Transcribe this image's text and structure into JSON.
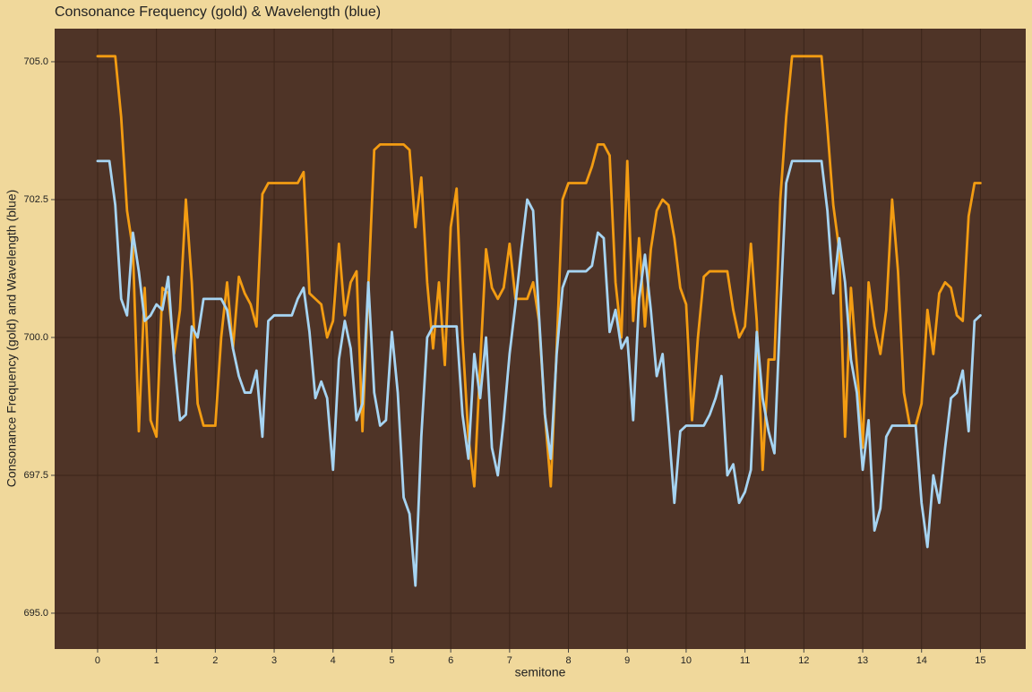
{
  "chart_data": {
    "type": "line",
    "title": "Consonance Frequency (gold) & Wavelength (blue)",
    "x_label": "semitone",
    "y_label": "Consonance Frequency (gold) and Wavelength (blue)",
    "x": [
      0,
      0.1,
      0.2,
      0.3,
      0.4,
      0.5,
      0.6,
      0.7,
      0.8,
      0.9,
      1,
      1.1,
      1.2,
      1.3,
      1.4,
      1.5,
      1.6,
      1.7,
      1.8,
      1.9,
      2,
      2.1,
      2.2,
      2.3,
      2.4,
      2.5,
      2.6,
      2.7,
      2.8,
      2.9,
      3,
      3.1,
      3.2,
      3.3,
      3.4,
      3.5,
      3.6,
      3.7,
      3.8,
      3.9,
      4,
      4.1,
      4.2,
      4.3,
      4.4,
      4.5,
      4.6,
      4.7,
      4.8,
      4.9,
      5,
      5.1,
      5.2,
      5.3,
      5.4,
      5.5,
      5.6,
      5.7,
      5.8,
      5.9,
      6,
      6.1,
      6.2,
      6.3,
      6.4,
      6.5,
      6.6,
      6.7,
      6.8,
      6.9,
      7,
      7.1,
      7.2,
      7.3,
      7.4,
      7.5,
      7.6,
      7.7,
      7.8,
      7.9,
      8,
      8.1,
      8.2,
      8.3,
      8.4,
      8.5,
      8.6,
      8.7,
      8.8,
      8.9,
      9,
      9.1,
      9.2,
      9.3,
      9.4,
      9.5,
      9.6,
      9.7,
      9.8,
      9.9,
      10,
      10.1,
      10.2,
      10.3,
      10.4,
      10.5,
      10.6,
      10.7,
      10.8,
      10.9,
      11,
      11.1,
      11.2,
      11.3,
      11.4,
      11.5,
      11.6,
      11.7,
      11.8,
      11.9,
      12,
      12.1,
      12.2,
      12.3,
      12.4,
      12.5,
      12.6,
      12.7,
      12.8,
      12.9,
      13,
      13.1,
      13.2,
      13.3,
      13.4,
      13.5,
      13.6,
      13.7,
      13.8,
      13.9,
      14,
      14.1,
      14.2,
      14.3,
      14.4,
      14.5,
      14.6,
      14.7,
      14.8,
      14.9,
      15
    ],
    "series": [
      {
        "name": "Consonance Frequency",
        "color": "#f39c12",
        "values": [
          705.1,
          705.1,
          705.1,
          705.1,
          704.0,
          702.3,
          701.6,
          698.3,
          700.9,
          698.5,
          698.2,
          700.9,
          700.8,
          699.7,
          700.5,
          702.5,
          701.0,
          698.8,
          698.4,
          698.4,
          698.4,
          700.0,
          701.0,
          699.8,
          701.1,
          700.8,
          700.6,
          700.2,
          702.6,
          702.8,
          702.8,
          702.8,
          702.8,
          702.8,
          702.8,
          703.0,
          700.8,
          700.7,
          700.6,
          700.0,
          700.3,
          701.7,
          700.4,
          701.0,
          701.2,
          698.3,
          700.9,
          703.4,
          703.5,
          703.5,
          703.5,
          703.5,
          703.5,
          703.4,
          702.0,
          702.9,
          701.0,
          699.8,
          701.0,
          699.5,
          702.0,
          702.7,
          700.0,
          698.2,
          697.3,
          699.5,
          701.6,
          700.9,
          700.7,
          700.9,
          701.7,
          700.7,
          700.7,
          700.7,
          701.0,
          700.3,
          698.6,
          697.3,
          699.8,
          702.5,
          702.8,
          702.8,
          702.8,
          702.8,
          703.1,
          703.5,
          703.5,
          703.3,
          701.0,
          700.0,
          703.2,
          700.3,
          701.8,
          700.2,
          701.6,
          702.3,
          702.5,
          702.4,
          701.8,
          700.9,
          700.6,
          698.5,
          700.0,
          701.1,
          701.2,
          701.2,
          701.2,
          701.2,
          700.5,
          700.0,
          700.2,
          701.7,
          700.3,
          697.6,
          699.6,
          699.6,
          702.5,
          704.0,
          705.1,
          705.1,
          705.1,
          705.1,
          705.1,
          705.1,
          703.8,
          702.4,
          701.6,
          698.2,
          700.9,
          699.5,
          698.0,
          701.0,
          700.2,
          699.7,
          700.5,
          702.5,
          701.2,
          699.0,
          698.4,
          698.4,
          698.8,
          700.5,
          699.7,
          700.8,
          701.0,
          700.9,
          700.4,
          700.3,
          702.2,
          702.8,
          702.8
        ]
      },
      {
        "name": "Wavelength",
        "color": "#a6d4f2",
        "values": [
          703.2,
          703.2,
          703.2,
          702.4,
          700.7,
          700.4,
          701.9,
          701.2,
          700.3,
          700.4,
          700.6,
          700.5,
          701.1,
          699.6,
          698.5,
          698.6,
          700.2,
          700.0,
          700.7,
          700.7,
          700.7,
          700.7,
          700.5,
          699.8,
          699.3,
          699.0,
          699.0,
          699.4,
          698.2,
          700.3,
          700.4,
          700.4,
          700.4,
          700.4,
          700.7,
          700.9,
          700.1,
          698.9,
          699.2,
          698.9,
          697.6,
          699.6,
          700.3,
          699.8,
          698.5,
          698.8,
          701.0,
          699.0,
          698.4,
          698.5,
          700.1,
          699.0,
          697.1,
          696.8,
          695.5,
          698.2,
          700.0,
          700.2,
          700.2,
          700.2,
          700.2,
          700.2,
          698.6,
          697.8,
          699.7,
          698.9,
          700.0,
          698.0,
          697.5,
          698.5,
          699.7,
          700.6,
          701.6,
          702.5,
          702.3,
          700.4,
          698.6,
          697.8,
          699.7,
          700.9,
          701.2,
          701.2,
          701.2,
          701.2,
          701.3,
          701.9,
          701.8,
          700.1,
          700.5,
          699.8,
          700.0,
          698.5,
          700.7,
          701.5,
          700.5,
          699.3,
          699.7,
          698.4,
          697.0,
          698.3,
          698.4,
          698.4,
          698.4,
          698.4,
          698.6,
          698.9,
          699.3,
          697.5,
          697.7,
          697.0,
          697.2,
          697.6,
          700.1,
          698.9,
          698.3,
          697.9,
          700.5,
          702.8,
          703.2,
          703.2,
          703.2,
          703.2,
          703.2,
          703.2,
          702.3,
          700.8,
          701.8,
          701.0,
          699.6,
          699.0,
          697.6,
          698.5,
          696.5,
          696.9,
          698.2,
          698.4,
          698.4,
          698.4,
          698.4,
          698.4,
          697.0,
          696.2,
          697.5,
          697.0,
          698.0,
          698.9,
          699.0,
          699.4,
          698.3,
          700.3,
          700.4
        ]
      }
    ],
    "xlim": [
      -0.73,
      15.77
    ],
    "ylim": [
      694.35,
      705.6
    ],
    "xticks": [
      0,
      1,
      2,
      3,
      4,
      5,
      6,
      7,
      8,
      9,
      10,
      11,
      12,
      13,
      14,
      15
    ],
    "yticks": [
      {
        "value": 695,
        "label": "695.0"
      },
      {
        "value": 697.5,
        "label": "697.5"
      },
      {
        "value": 700,
        "label": "700.0"
      },
      {
        "value": 702.5,
        "label": "702.5"
      },
      {
        "value": 705,
        "label": "705.0"
      }
    ],
    "background": "#4f3427",
    "grid": true
  }
}
